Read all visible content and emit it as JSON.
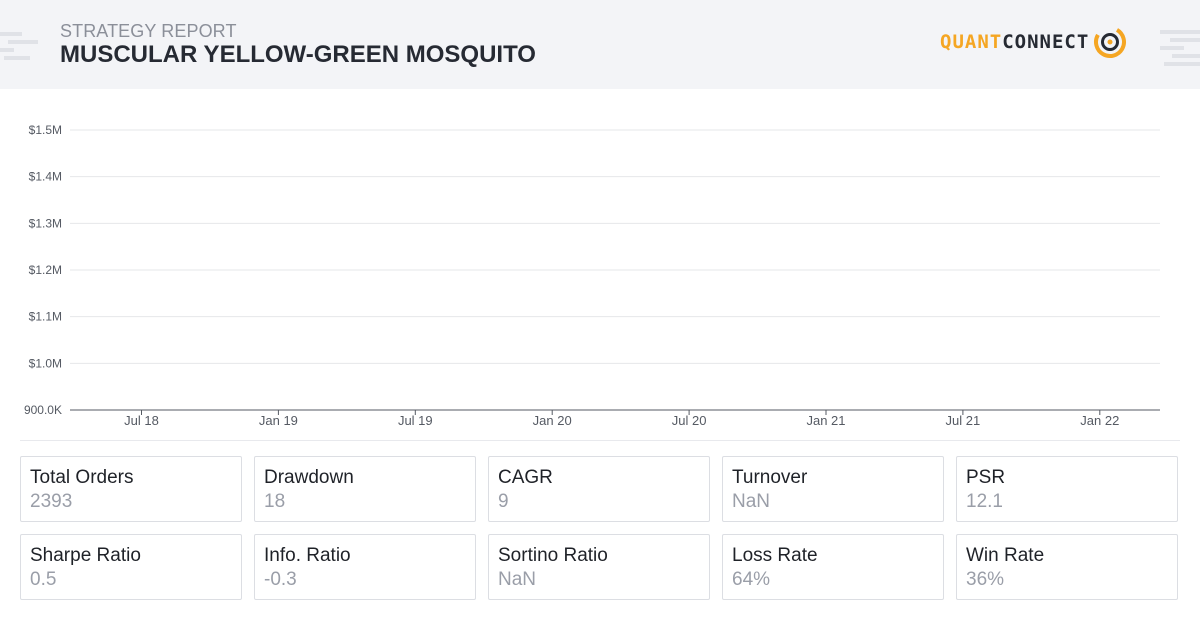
{
  "header": {
    "subtitle": "STRATEGY REPORT",
    "title": "MUSCULAR YELLOW-GREEN MOSQUITO",
    "logo": {
      "part1": "QUANT",
      "part2": "CONNECT",
      "part1_color": "#f5a623",
      "part2_color": "#262a33",
      "icon": "quantconnect-ring-icon"
    }
  },
  "chart_data": {
    "type": "line",
    "title": "",
    "xlabel": "",
    "ylabel": "",
    "ylim": [
      900000,
      1500000
    ],
    "y_ticks": [
      {
        "value": 1500000,
        "label": "$1.5M"
      },
      {
        "value": 1400000,
        "label": "$1.4M"
      },
      {
        "value": 1300000,
        "label": "$1.3M"
      },
      {
        "value": 1200000,
        "label": "$1.2M"
      },
      {
        "value": 1100000,
        "label": "$1.1M"
      },
      {
        "value": 1000000,
        "label": "$1.0M"
      },
      {
        "value": 900000,
        "label": "900.0K"
      }
    ],
    "x_ticks": [
      "Jul 18",
      "Jan 19",
      "Jul 19",
      "Jan 20",
      "Jul 20",
      "Jan 21",
      "Jul 21",
      "Jan 22"
    ],
    "grid": true,
    "series": []
  },
  "stats": [
    {
      "label": "Total Orders",
      "value": "2393"
    },
    {
      "label": "Drawdown",
      "value": "18"
    },
    {
      "label": "CAGR",
      "value": "9"
    },
    {
      "label": "Turnover",
      "value": "NaN"
    },
    {
      "label": "PSR",
      "value": "12.1"
    },
    {
      "label": "Sharpe Ratio",
      "value": "0.5"
    },
    {
      "label": "Info. Ratio",
      "value": "-0.3"
    },
    {
      "label": "Sortino Ratio",
      "value": "NaN"
    },
    {
      "label": "Loss Rate",
      "value": "64%"
    },
    {
      "label": "Win Rate",
      "value": "36%"
    }
  ]
}
